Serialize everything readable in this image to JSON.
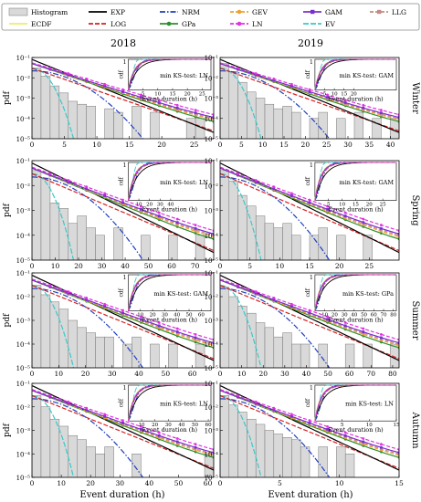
{
  "legend": [
    {
      "label": "Histogram",
      "color": "#d9d9d9",
      "dash": "",
      "marker": "box"
    },
    {
      "label": "EXP",
      "color": "#000000",
      "dash": "",
      "marker": ""
    },
    {
      "label": "NRM",
      "color": "#1f3fbf",
      "dash": "6,2,1.5,2",
      "marker": ""
    },
    {
      "label": "GEV",
      "color": "#f0a030",
      "dash": "4,2",
      "marker": "circle"
    },
    {
      "label": "GAM",
      "color": "#7a2fd0",
      "dash": "",
      "marker": "square"
    },
    {
      "label": "LLG",
      "color": "#c48a88",
      "dash": "4,2",
      "marker": "square"
    },
    {
      "label": "ECDF",
      "color": "#ecec70",
      "dash": "",
      "marker": ""
    },
    {
      "label": "LOG",
      "color": "#d62020",
      "dash": "5,2",
      "marker": ""
    },
    {
      "label": "GPa",
      "color": "#2f8f2f",
      "dash": "",
      "marker": "circle"
    },
    {
      "label": "LN",
      "color": "#e033e0",
      "dash": "4,2",
      "marker": "circle"
    },
    {
      "label": "EV",
      "color": "#3cc8c8",
      "dash": "6,2",
      "marker": ""
    }
  ],
  "columns": [
    "2018",
    "2019"
  ],
  "rows": [
    "Winter",
    "Spring",
    "Summer",
    "Autumn"
  ],
  "ylabel": "pdf",
  "xlabel": "Event duration (h)",
  "inset_xlabel": "Event duration (h)",
  "inset_ylabel": "cdf",
  "inset_ytick": "1",
  "y_ticks": [
    "10⁻¹",
    "10⁻²",
    "10⁻³",
    "10⁻⁴",
    "10⁻⁵"
  ],
  "chart_data": [
    {
      "type": "line",
      "row": "Winter",
      "column": "2018",
      "yscale": "log",
      "ylim": [
        1e-05,
        0.1
      ],
      "xlim": [
        0,
        28
      ],
      "x_ticks": [
        0,
        5,
        10,
        15,
        20,
        25
      ],
      "inset_x_ticks": [
        5,
        10,
        15,
        20,
        25
      ],
      "annotation": "min KS-test: LN",
      "histogram": [
        0.03,
        0.012,
        0.004,
        0.0018,
        0.0007,
        0.0005,
        0.0004,
        0,
        0.0003,
        0.0002,
        0,
        0.0004,
        0,
        0.0002,
        0,
        0,
        0,
        0.0001,
        0.0001,
        0
      ]
    },
    {
      "type": "line",
      "row": "Winter",
      "column": "2019",
      "yscale": "log",
      "ylim": [
        1e-05,
        0.1
      ],
      "xlim": [
        0,
        42
      ],
      "x_ticks": [
        0,
        5,
        10,
        15,
        20,
        25,
        30,
        35,
        40
      ],
      "inset_x_ticks": [
        5,
        10,
        15,
        20
      ],
      "annotation": "min KS-test: GAM",
      "histogram": [
        0.05,
        0.02,
        0.006,
        0.002,
        0.001,
        0.0005,
        0.0003,
        0.0004,
        0.0002,
        0,
        0.0001,
        0.0002,
        0,
        0.0001,
        0,
        0.0002,
        0,
        0.0001,
        0,
        0.0001
      ]
    },
    {
      "type": "line",
      "row": "Spring",
      "column": "2018",
      "yscale": "log",
      "ylim": [
        1e-05,
        0.1
      ],
      "xlim": [
        0,
        78
      ],
      "x_ticks": [
        0,
        10,
        20,
        30,
        40,
        50,
        60,
        70
      ],
      "inset_x_ticks": [
        10,
        20,
        30,
        40
      ],
      "annotation": "min KS-test: LN",
      "histogram": [
        0.04,
        0.02,
        0.002,
        0.0012,
        0.0003,
        0.0006,
        0.0002,
        0.0001,
        0,
        0.0002,
        0,
        0,
        0.0001,
        0,
        0,
        0.0001,
        0,
        0,
        0.0001,
        0
      ]
    },
    {
      "type": "line",
      "row": "Spring",
      "column": "2019",
      "yscale": "log",
      "ylim": [
        1e-05,
        0.1
      ],
      "xlim": [
        0,
        30
      ],
      "x_ticks": [
        0,
        5,
        10,
        15,
        20,
        25
      ],
      "inset_x_ticks": [
        5,
        10,
        15,
        20,
        25
      ],
      "annotation": "min KS-test: GAM",
      "histogram": [
        0.04,
        0.015,
        0.004,
        0.0015,
        0.0006,
        0.0003,
        0.0002,
        0.0003,
        0.0001,
        0,
        0.0001,
        0.0002,
        0,
        0.0001,
        0,
        0,
        0.0001,
        0,
        0,
        0
      ]
    },
    {
      "type": "line",
      "row": "Summer",
      "column": "2018",
      "yscale": "log",
      "ylim": [
        1e-05,
        0.1
      ],
      "xlim": [
        0,
        68
      ],
      "x_ticks": [
        0,
        10,
        20,
        30,
        40,
        50,
        60
      ],
      "inset_x_ticks": [
        10,
        20,
        30,
        40,
        50,
        60
      ],
      "annotation": "min KS-test: GAM",
      "histogram": [
        0.03,
        0.012,
        0.006,
        0.003,
        0.001,
        0.0005,
        0.0003,
        0.0002,
        0.0002,
        0,
        0.0001,
        0.0002,
        0,
        0.0001,
        0,
        0.0001,
        0,
        0,
        0.0001,
        0
      ]
    },
    {
      "type": "line",
      "row": "Summer",
      "column": "2019",
      "yscale": "log",
      "ylim": [
        1e-05,
        0.1
      ],
      "xlim": [
        0,
        83
      ],
      "x_ticks": [
        0,
        10,
        20,
        30,
        40,
        50,
        60,
        70,
        80
      ],
      "inset_x_ticks": [
        10,
        20,
        30,
        40,
        50,
        60,
        70,
        80
      ],
      "annotation": "min KS-test: GPa",
      "histogram": [
        0.025,
        0.01,
        0.004,
        0.002,
        0.0008,
        0.0005,
        0.0002,
        0.0003,
        0.0001,
        0.0001,
        0,
        0.0001,
        0,
        0,
        0.0001,
        0,
        0.0001,
        0,
        0,
        0.0001
      ]
    },
    {
      "type": "line",
      "row": "Autumn",
      "column": "2018",
      "yscale": "log",
      "ylim": [
        1e-05,
        0.1
      ],
      "xlim": [
        0,
        62
      ],
      "x_ticks": [
        0,
        10,
        20,
        30,
        40,
        50,
        60
      ],
      "inset_x_ticks": [
        10,
        20,
        30,
        40,
        50,
        60
      ],
      "annotation": "min KS-test: LN",
      "histogram": [
        0.03,
        0.01,
        0.003,
        0.0015,
        0.0006,
        0.0004,
        0.0002,
        0.0001,
        0.0002,
        0,
        0,
        0.0001,
        0,
        0,
        0,
        0,
        0,
        0,
        0,
        0.0001
      ]
    },
    {
      "type": "line",
      "row": "Autumn",
      "column": "2019",
      "yscale": "log",
      "ylim": [
        1e-05,
        0.1
      ],
      "xlim": [
        0,
        15
      ],
      "x_ticks": [
        0,
        5,
        10,
        15
      ],
      "inset_x_ticks": [
        5,
        10,
        15
      ],
      "annotation": "min KS-test: LN",
      "histogram": [
        0.03,
        0.012,
        0.006,
        0.003,
        0.0018,
        0.001,
        0.0007,
        0.0005,
        0.0004,
        0.0002,
        0,
        0.0002,
        0,
        0.0002,
        0.0001,
        0,
        0,
        0,
        0,
        0
      ]
    }
  ]
}
